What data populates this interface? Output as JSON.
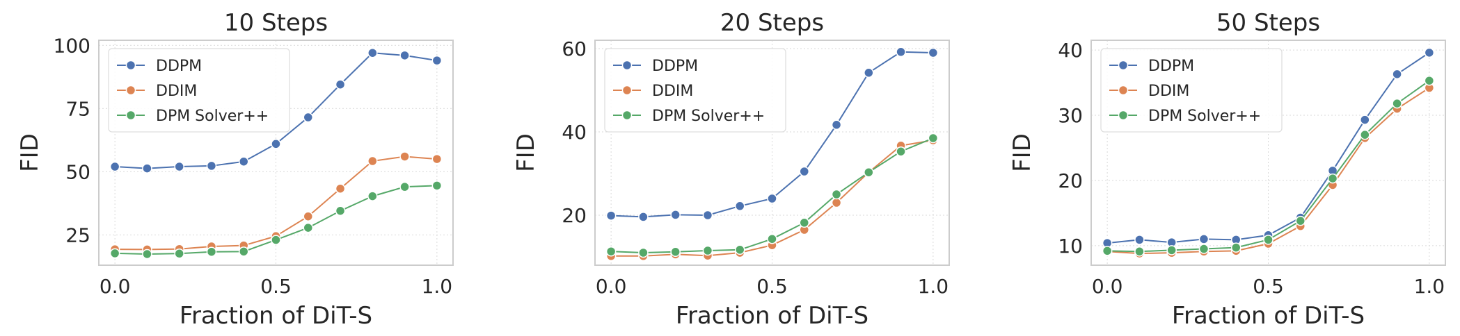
{
  "chart_data": [
    {
      "type": "line",
      "title": "10 Steps",
      "xlabel": "Fraction of DiT-S",
      "ylabel": "FID",
      "x": [
        0.0,
        0.1,
        0.2,
        0.3,
        0.4,
        0.5,
        0.6,
        0.7,
        0.8,
        0.9,
        1.0
      ],
      "xticks": [
        "0.0",
        "0.5",
        "1.0"
      ],
      "xlim": [
        -0.05,
        1.05
      ],
      "yticks": [
        "25",
        "50",
        "75",
        "100"
      ],
      "ylim": [
        13,
        102
      ],
      "grid": true,
      "legend": "upper-left",
      "series": [
        {
          "name": "DDPM",
          "color": "#4c72b0",
          "values": [
            52,
            51.3,
            52,
            52.3,
            54,
            61,
            71.5,
            84.5,
            97,
            96,
            94
          ]
        },
        {
          "name": "DDIM",
          "color": "#dd8452",
          "values": [
            19.3,
            19.2,
            19.4,
            20.4,
            20.8,
            24.5,
            32.3,
            43.3,
            54.2,
            56,
            55
          ]
        },
        {
          "name": "DPM Solver++",
          "color": "#55a868",
          "values": [
            17.7,
            17.4,
            17.6,
            18.3,
            18.4,
            23,
            27.8,
            34.5,
            40.3,
            44,
            44.5
          ]
        }
      ]
    },
    {
      "type": "line",
      "title": "20 Steps",
      "xlabel": "Fraction of DiT-S",
      "ylabel": "FID",
      "x": [
        0.0,
        0.1,
        0.2,
        0.3,
        0.4,
        0.5,
        0.6,
        0.7,
        0.8,
        0.9,
        1.0
      ],
      "xticks": [
        "0.0",
        "0.5",
        "1.0"
      ],
      "xlim": [
        -0.05,
        1.05
      ],
      "yticks": [
        "20",
        "40",
        "60"
      ],
      "ylim": [
        8,
        62
      ],
      "grid": true,
      "legend": "upper-left",
      "series": [
        {
          "name": "DDPM",
          "color": "#4c72b0",
          "values": [
            19.9,
            19.6,
            20.1,
            20,
            22.2,
            24,
            30.5,
            41.7,
            54.2,
            59.2,
            59
          ]
        },
        {
          "name": "DDIM",
          "color": "#dd8452",
          "values": [
            10.2,
            10.2,
            10.6,
            10.3,
            11,
            12.8,
            16.5,
            23,
            30.3,
            36.7,
            38
          ]
        },
        {
          "name": "DPM Solver++",
          "color": "#55a868",
          "values": [
            11.3,
            11,
            11.2,
            11.5,
            11.7,
            14.3,
            18.2,
            25,
            30.3,
            35.3,
            38.5
          ]
        }
      ]
    },
    {
      "type": "line",
      "title": "50 Steps",
      "xlabel": "Fraction of DiT-S",
      "ylabel": "FID",
      "x": [
        0.0,
        0.1,
        0.2,
        0.3,
        0.4,
        0.5,
        0.6,
        0.7,
        0.8,
        0.9,
        1.0
      ],
      "xticks": [
        "0.0",
        "0.5",
        "1.0"
      ],
      "xlim": [
        -0.05,
        1.05
      ],
      "yticks": [
        "10",
        "20",
        "30",
        "40"
      ],
      "ylim": [
        7,
        41.5
      ],
      "grid": true,
      "legend": "upper-left",
      "series": [
        {
          "name": "DDPM",
          "color": "#4c72b0",
          "values": [
            10.4,
            10.9,
            10.5,
            11,
            10.9,
            11.6,
            14.3,
            21.5,
            29.3,
            36.3,
            39.6
          ]
        },
        {
          "name": "DDIM",
          "color": "#dd8452",
          "values": [
            9.1,
            8.8,
            8.9,
            9.1,
            9.2,
            10.3,
            13,
            19.3,
            26.5,
            31,
            34.2
          ]
        },
        {
          "name": "DPM Solver++",
          "color": "#55a868",
          "values": [
            9.2,
            9.1,
            9.3,
            9.5,
            9.7,
            10.9,
            13.8,
            20.3,
            27,
            31.8,
            35.3
          ]
        }
      ]
    }
  ]
}
